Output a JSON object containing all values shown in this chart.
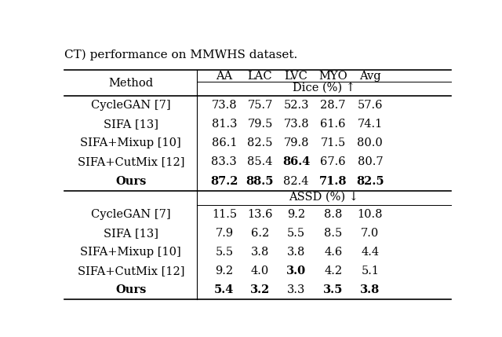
{
  "title": "CT) performance on MMWHS dataset.",
  "col_headers": [
    "AA",
    "LAC",
    "LVC",
    "MYO",
    "Avg"
  ],
  "section1_label": "Dice (%) ↑",
  "section2_label": "ASSD (%) ↓",
  "rows_dice": [
    {
      "method": "CycleGAN [7]",
      "vals": [
        "73.8",
        "75.7",
        "52.3",
        "28.7",
        "57.6"
      ],
      "bold_cols": []
    },
    {
      "method": "SIFA [13]",
      "vals": [
        "81.3",
        "79.5",
        "73.8",
        "61.6",
        "74.1"
      ],
      "bold_cols": []
    },
    {
      "method": "SIFA+Mixup [10]",
      "vals": [
        "86.1",
        "82.5",
        "79.8",
        "71.5",
        "80.0"
      ],
      "bold_cols": []
    },
    {
      "method": "SIFA+CutMix [12]",
      "vals": [
        "83.3",
        "85.4",
        "86.4",
        "67.6",
        "80.7"
      ],
      "bold_cols": [
        2
      ]
    },
    {
      "method": "Ours",
      "vals": [
        "87.2",
        "88.5",
        "82.4",
        "71.8",
        "82.5"
      ],
      "bold_cols": [
        -1,
        0,
        1,
        3,
        4
      ],
      "bold_method": true
    }
  ],
  "rows_assd": [
    {
      "method": "CycleGAN [7]",
      "vals": [
        "11.5",
        "13.6",
        "9.2",
        "8.8",
        "10.8"
      ],
      "bold_cols": []
    },
    {
      "method": "SIFA [13]",
      "vals": [
        "7.9",
        "6.2",
        "5.5",
        "8.5",
        "7.0"
      ],
      "bold_cols": []
    },
    {
      "method": "SIFA+Mixup [10]",
      "vals": [
        "5.5",
        "3.8",
        "3.8",
        "4.6",
        "4.4"
      ],
      "bold_cols": []
    },
    {
      "method": "SIFA+CutMix [12]",
      "vals": [
        "9.2",
        "4.0",
        "3.0",
        "4.2",
        "5.1"
      ],
      "bold_cols": [
        2
      ]
    },
    {
      "method": "Ours",
      "vals": [
        "5.4",
        "3.2",
        "3.3",
        "3.5",
        "3.8"
      ],
      "bold_cols": [
        -1,
        0,
        1,
        3,
        4
      ],
      "bold_method": true
    }
  ],
  "bg_color": "#ffffff",
  "text_color": "#000000",
  "font_size": 10.5,
  "line_color": "#000000"
}
